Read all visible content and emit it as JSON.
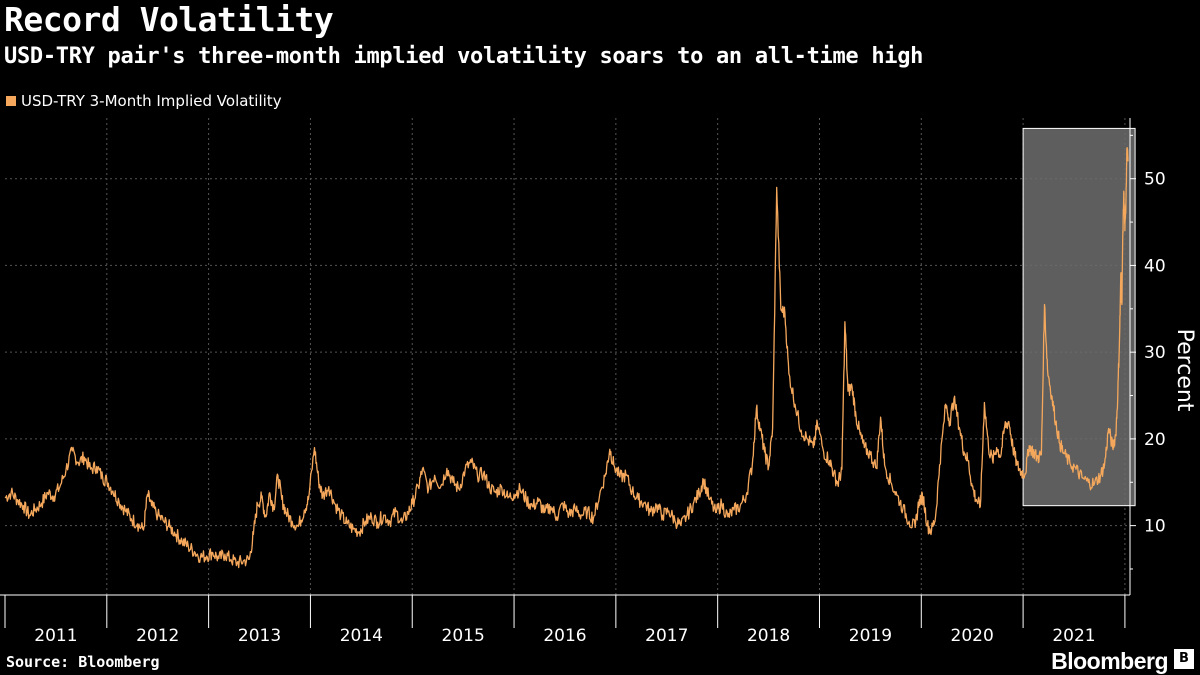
{
  "chart_data": {
    "type": "line",
    "title": "Record Volatility",
    "subtitle": "USD-TRY pair's three-month implied volatility soars to an all-time high",
    "ylabel": "Percent",
    "xlabel": "",
    "ylim": [
      2,
      57
    ],
    "xlim": [
      2011.0,
      2022.05
    ],
    "yticks": [
      10,
      20,
      30,
      40,
      50
    ],
    "year_labels": [
      "2011",
      "2012",
      "2013",
      "2014",
      "2015",
      "2016",
      "2017",
      "2018",
      "2019",
      "2020",
      "2021"
    ],
    "legend_position": "top-left",
    "grid": true,
    "highlight": {
      "x_start": 2021.0,
      "x_end": 2022.1,
      "y_start": 12.3,
      "y_end": 55.8,
      "color": "#6e6e6e"
    },
    "series": [
      {
        "name": "USD-TRY 3-Month Implied Volatility",
        "color": "#f5a85c",
        "points": [
          [
            2011.0,
            13.2
          ],
          [
            2011.06,
            13.8
          ],
          [
            2011.12,
            13.0
          ],
          [
            2011.18,
            12.3
          ],
          [
            2011.24,
            11.2
          ],
          [
            2011.3,
            11.9
          ],
          [
            2011.36,
            12.6
          ],
          [
            2011.42,
            13.8
          ],
          [
            2011.48,
            13.4
          ],
          [
            2011.54,
            14.5
          ],
          [
            2011.6,
            16.5
          ],
          [
            2011.66,
            18.6
          ],
          [
            2011.72,
            17.3
          ],
          [
            2011.78,
            17.9
          ],
          [
            2011.84,
            16.5
          ],
          [
            2011.9,
            16.8
          ],
          [
            2011.96,
            15.5
          ],
          [
            2012.0,
            15.2
          ],
          [
            2012.06,
            14.0
          ],
          [
            2012.12,
            12.8
          ],
          [
            2012.18,
            11.8
          ],
          [
            2012.24,
            10.8
          ],
          [
            2012.3,
            10.2
          ],
          [
            2012.36,
            9.5
          ],
          [
            2012.4,
            13.6
          ],
          [
            2012.44,
            12.3
          ],
          [
            2012.5,
            11.2
          ],
          [
            2012.56,
            10.5
          ],
          [
            2012.62,
            9.8
          ],
          [
            2012.68,
            9.0
          ],
          [
            2012.74,
            8.2
          ],
          [
            2012.8,
            7.6
          ],
          [
            2012.86,
            7.0
          ],
          [
            2012.92,
            6.4
          ],
          [
            2012.98,
            6.5
          ],
          [
            2013.04,
            6.9
          ],
          [
            2013.1,
            6.2
          ],
          [
            2013.16,
            6.7
          ],
          [
            2013.22,
            6.1
          ],
          [
            2013.28,
            5.7
          ],
          [
            2013.34,
            5.9
          ],
          [
            2013.4,
            6.1
          ],
          [
            2013.44,
            9.0
          ],
          [
            2013.48,
            12.5
          ],
          [
            2013.52,
            13.2
          ],
          [
            2013.56,
            11.0
          ],
          [
            2013.6,
            13.8
          ],
          [
            2013.64,
            12.0
          ],
          [
            2013.68,
            15.8
          ],
          [
            2013.72,
            13.0
          ],
          [
            2013.76,
            11.5
          ],
          [
            2013.82,
            10.5
          ],
          [
            2013.88,
            9.9
          ],
          [
            2013.94,
            11.8
          ],
          [
            2013.98,
            13.0
          ],
          [
            2014.04,
            19.0
          ],
          [
            2014.08,
            15.2
          ],
          [
            2014.12,
            13.4
          ],
          [
            2014.18,
            14.5
          ],
          [
            2014.24,
            12.5
          ],
          [
            2014.3,
            11.2
          ],
          [
            2014.36,
            10.2
          ],
          [
            2014.42,
            9.6
          ],
          [
            2014.48,
            9.3
          ],
          [
            2014.54,
            10.5
          ],
          [
            2014.6,
            11.0
          ],
          [
            2014.66,
            10.4
          ],
          [
            2014.72,
            11.2
          ],
          [
            2014.78,
            10.5
          ],
          [
            2014.84,
            11.6
          ],
          [
            2014.9,
            10.3
          ],
          [
            2014.96,
            11.5
          ],
          [
            2015.0,
            12.5
          ],
          [
            2015.06,
            14.5
          ],
          [
            2015.1,
            16.5
          ],
          [
            2015.16,
            14.2
          ],
          [
            2015.22,
            15.8
          ],
          [
            2015.28,
            14.5
          ],
          [
            2015.34,
            16.6
          ],
          [
            2015.4,
            15.0
          ],
          [
            2015.46,
            14.2
          ],
          [
            2015.52,
            16.5
          ],
          [
            2015.58,
            17.3
          ],
          [
            2015.64,
            15.8
          ],
          [
            2015.7,
            16.0
          ],
          [
            2015.76,
            14.4
          ],
          [
            2015.82,
            13.8
          ],
          [
            2015.88,
            14.4
          ],
          [
            2015.94,
            13.2
          ],
          [
            2016.0,
            13.6
          ],
          [
            2016.06,
            14.2
          ],
          [
            2016.12,
            13.0
          ],
          [
            2016.18,
            12.2
          ],
          [
            2016.24,
            12.8
          ],
          [
            2016.3,
            11.5
          ],
          [
            2016.36,
            12.2
          ],
          [
            2016.42,
            11.0
          ],
          [
            2016.48,
            12.5
          ],
          [
            2016.54,
            11.3
          ],
          [
            2016.6,
            11.9
          ],
          [
            2016.66,
            11.2
          ],
          [
            2016.72,
            11.6
          ],
          [
            2016.78,
            10.9
          ],
          [
            2016.84,
            13.5
          ],
          [
            2016.9,
            16.0
          ],
          [
            2016.94,
            18.8
          ],
          [
            2016.98,
            17.0
          ],
          [
            2017.04,
            15.6
          ],
          [
            2017.1,
            15.8
          ],
          [
            2017.16,
            14.0
          ],
          [
            2017.22,
            13.0
          ],
          [
            2017.28,
            12.6
          ],
          [
            2017.34,
            11.6
          ],
          [
            2017.4,
            12.3
          ],
          [
            2017.46,
            11.2
          ],
          [
            2017.52,
            11.7
          ],
          [
            2017.58,
            10.6
          ],
          [
            2017.64,
            10.0
          ],
          [
            2017.7,
            11.2
          ],
          [
            2017.76,
            12.5
          ],
          [
            2017.82,
            13.8
          ],
          [
            2017.86,
            15.3
          ],
          [
            2017.92,
            13.0
          ],
          [
            2017.98,
            11.5
          ],
          [
            2018.04,
            12.5
          ],
          [
            2018.1,
            11.0
          ],
          [
            2018.16,
            11.8
          ],
          [
            2018.22,
            12.2
          ],
          [
            2018.28,
            13.5
          ],
          [
            2018.34,
            17.0
          ],
          [
            2018.38,
            23.5
          ],
          [
            2018.42,
            21.0
          ],
          [
            2018.46,
            18.5
          ],
          [
            2018.5,
            16.8
          ],
          [
            2018.54,
            21.2
          ],
          [
            2018.58,
            49.0
          ],
          [
            2018.62,
            35.0
          ],
          [
            2018.66,
            34.5
          ],
          [
            2018.7,
            27.5
          ],
          [
            2018.76,
            24.0
          ],
          [
            2018.82,
            21.0
          ],
          [
            2018.88,
            20.0
          ],
          [
            2018.94,
            19.0
          ],
          [
            2018.98,
            21.8
          ],
          [
            2019.04,
            18.5
          ],
          [
            2019.1,
            17.5
          ],
          [
            2019.14,
            16.0
          ],
          [
            2019.18,
            14.8
          ],
          [
            2019.22,
            16.5
          ],
          [
            2019.25,
            33.5
          ],
          [
            2019.28,
            25.5
          ],
          [
            2019.32,
            26.0
          ],
          [
            2019.36,
            22.5
          ],
          [
            2019.4,
            20.5
          ],
          [
            2019.44,
            19.0
          ],
          [
            2019.5,
            18.2
          ],
          [
            2019.56,
            16.6
          ],
          [
            2019.6,
            22.5
          ],
          [
            2019.64,
            17.0
          ],
          [
            2019.7,
            15.0
          ],
          [
            2019.76,
            13.5
          ],
          [
            2019.82,
            12.0
          ],
          [
            2019.88,
            10.5
          ],
          [
            2019.94,
            9.8
          ],
          [
            2019.98,
            13.0
          ],
          [
            2020.02,
            13.2
          ],
          [
            2020.06,
            10.0
          ],
          [
            2020.1,
            9.4
          ],
          [
            2020.14,
            11.0
          ],
          [
            2020.18,
            17.0
          ],
          [
            2020.24,
            24.0
          ],
          [
            2020.28,
            22.0
          ],
          [
            2020.32,
            24.6
          ],
          [
            2020.38,
            21.0
          ],
          [
            2020.42,
            18.5
          ],
          [
            2020.46,
            17.5
          ],
          [
            2020.5,
            14.5
          ],
          [
            2020.54,
            13.0
          ],
          [
            2020.58,
            12.2
          ],
          [
            2020.62,
            24.2
          ],
          [
            2020.66,
            19.0
          ],
          [
            2020.7,
            17.5
          ],
          [
            2020.74,
            19.0
          ],
          [
            2020.78,
            18.0
          ],
          [
            2020.82,
            21.5
          ],
          [
            2020.86,
            22.0
          ],
          [
            2020.9,
            19.0
          ],
          [
            2020.94,
            17.0
          ],
          [
            2020.98,
            16.2
          ],
          [
            2021.02,
            16.0
          ],
          [
            2021.06,
            19.2
          ],
          [
            2021.1,
            18.5
          ],
          [
            2021.14,
            17.8
          ],
          [
            2021.18,
            18.2
          ],
          [
            2021.21,
            35.5
          ],
          [
            2021.24,
            28.0
          ],
          [
            2021.28,
            25.0
          ],
          [
            2021.32,
            22.0
          ],
          [
            2021.36,
            19.5
          ],
          [
            2021.4,
            18.3
          ],
          [
            2021.46,
            17.2
          ],
          [
            2021.52,
            16.5
          ],
          [
            2021.58,
            15.5
          ],
          [
            2021.64,
            15.0
          ],
          [
            2021.7,
            14.8
          ],
          [
            2021.76,
            15.8
          ],
          [
            2021.8,
            17.0
          ],
          [
            2021.84,
            21.2
          ],
          [
            2021.88,
            19.0
          ],
          [
            2021.91,
            20.5
          ],
          [
            2021.93,
            25.0
          ],
          [
            2021.95,
            33.0
          ],
          [
            2021.96,
            39.0
          ],
          [
            2021.97,
            35.5
          ],
          [
            2021.98,
            44.0
          ],
          [
            2021.99,
            48.5
          ],
          [
            2022.0,
            44.0
          ],
          [
            2022.01,
            47.0
          ],
          [
            2022.02,
            53.5
          ],
          [
            2022.03,
            52.0
          ]
        ]
      }
    ]
  },
  "footer": {
    "source": "Source: Bloomberg",
    "brand": "Bloomberg",
    "brand_icon": "B"
  }
}
